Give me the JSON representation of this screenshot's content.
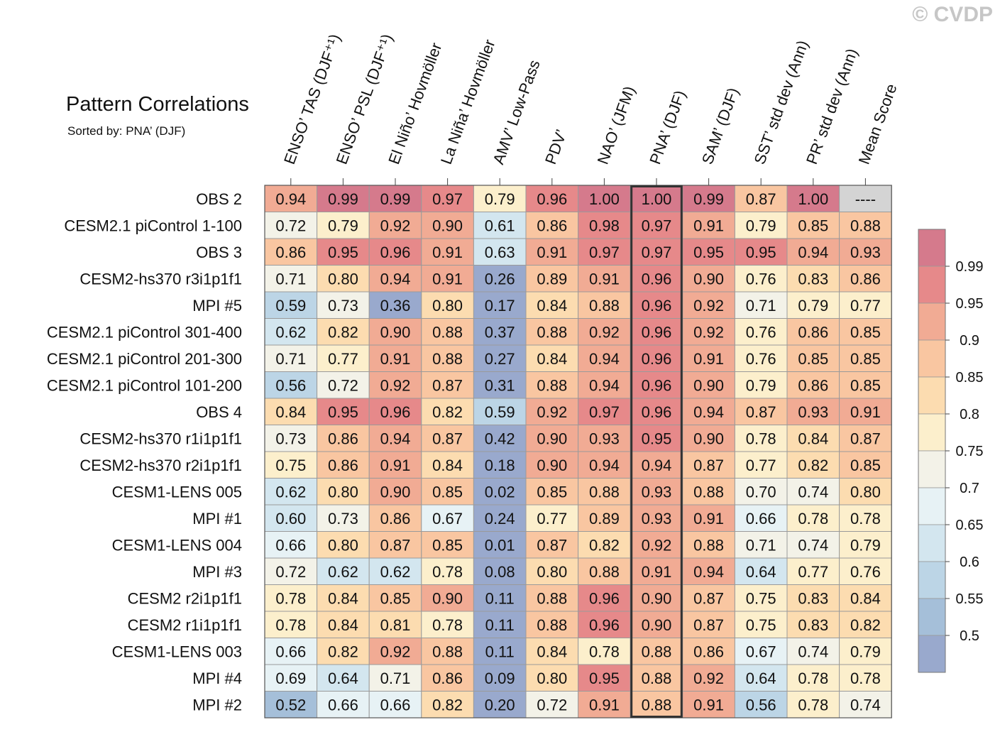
{
  "watermark": "© CVDP",
  "title": "Pattern Correlations",
  "subtitle": "Sorted by: PNA’ (DJF)",
  "chart_data": {
    "type": "heatmap",
    "title": "Pattern Correlations",
    "subtitle": "Sorted by: PNA’ (DJF)",
    "highlight_column": 7,
    "missing_label": "----",
    "columns": [
      "ENSO’ TAS (DJF⁺¹)",
      "ENSO’ PSL (DJF⁺¹)",
      "El Niño’ Hovmöller",
      "La Niña’ Hovmöller",
      "AMV’ Low-Pass",
      "PDV’",
      "NAO’ (JFM)",
      "PNA’ (DJF)",
      "SAM’ (DJF)",
      "SST’ std dev (Ann)",
      "PR’ std dev (Ann)",
      "Mean Score"
    ],
    "rows": [
      {
        "name": "OBS 2",
        "values": [
          0.94,
          0.99,
          0.99,
          0.97,
          0.79,
          0.96,
          1.0,
          1.0,
          0.99,
          0.87,
          1.0,
          null
        ]
      },
      {
        "name": "CESM2.1 piControl 1-100",
        "values": [
          0.72,
          0.79,
          0.92,
          0.9,
          0.61,
          0.86,
          0.98,
          0.97,
          0.91,
          0.79,
          0.85,
          0.88
        ]
      },
      {
        "name": "OBS 3",
        "values": [
          0.86,
          0.95,
          0.96,
          0.91,
          0.63,
          0.91,
          0.97,
          0.97,
          0.95,
          0.95,
          0.94,
          0.93
        ]
      },
      {
        "name": "CESM2-hs370 r3i1p1f1",
        "values": [
          0.71,
          0.8,
          0.94,
          0.91,
          0.26,
          0.89,
          0.91,
          0.96,
          0.9,
          0.76,
          0.83,
          0.86
        ]
      },
      {
        "name": "MPI #5",
        "values": [
          0.59,
          0.73,
          0.36,
          0.8,
          0.17,
          0.84,
          0.88,
          0.96,
          0.92,
          0.71,
          0.79,
          0.77
        ]
      },
      {
        "name": "CESM2.1 piControl 301-400",
        "values": [
          0.62,
          0.82,
          0.9,
          0.88,
          0.37,
          0.88,
          0.92,
          0.96,
          0.92,
          0.76,
          0.86,
          0.85
        ]
      },
      {
        "name": "CESM2.1 piControl 201-300",
        "values": [
          0.71,
          0.77,
          0.91,
          0.88,
          0.27,
          0.84,
          0.94,
          0.96,
          0.91,
          0.76,
          0.85,
          0.85
        ]
      },
      {
        "name": "CESM2.1 piControl 101-200",
        "values": [
          0.56,
          0.72,
          0.92,
          0.87,
          0.31,
          0.88,
          0.94,
          0.96,
          0.9,
          0.79,
          0.86,
          0.85
        ]
      },
      {
        "name": "OBS 4",
        "values": [
          0.84,
          0.95,
          0.96,
          0.82,
          0.59,
          0.92,
          0.97,
          0.96,
          0.94,
          0.87,
          0.93,
          0.91
        ]
      },
      {
        "name": "CESM2-hs370 r1i1p1f1",
        "values": [
          0.73,
          0.86,
          0.94,
          0.87,
          0.42,
          0.9,
          0.93,
          0.95,
          0.9,
          0.78,
          0.84,
          0.87
        ]
      },
      {
        "name": "CESM2-hs370 r2i1p1f1",
        "values": [
          0.75,
          0.86,
          0.91,
          0.84,
          0.18,
          0.9,
          0.94,
          0.94,
          0.87,
          0.77,
          0.82,
          0.85
        ]
      },
      {
        "name": "CESM1-LENS 005",
        "values": [
          0.62,
          0.8,
          0.9,
          0.85,
          0.02,
          0.85,
          0.88,
          0.93,
          0.88,
          0.7,
          0.74,
          0.8
        ]
      },
      {
        "name": "MPI #1",
        "values": [
          0.6,
          0.73,
          0.86,
          0.67,
          0.24,
          0.77,
          0.89,
          0.93,
          0.91,
          0.66,
          0.78,
          0.78
        ]
      },
      {
        "name": "CESM1-LENS 004",
        "values": [
          0.66,
          0.8,
          0.87,
          0.85,
          0.01,
          0.87,
          0.82,
          0.92,
          0.88,
          0.71,
          0.74,
          0.79
        ]
      },
      {
        "name": "MPI #3",
        "values": [
          0.72,
          0.62,
          0.62,
          0.78,
          0.08,
          0.8,
          0.88,
          0.91,
          0.94,
          0.64,
          0.77,
          0.76
        ]
      },
      {
        "name": "CESM2 r2i1p1f1",
        "values": [
          0.78,
          0.84,
          0.85,
          0.9,
          0.11,
          0.88,
          0.96,
          0.9,
          0.87,
          0.75,
          0.83,
          0.84
        ]
      },
      {
        "name": "CESM2 r1i1p1f1",
        "values": [
          0.78,
          0.84,
          0.81,
          0.78,
          0.11,
          0.88,
          0.96,
          0.9,
          0.87,
          0.75,
          0.83,
          0.82
        ]
      },
      {
        "name": "CESM1-LENS 003",
        "values": [
          0.66,
          0.82,
          0.92,
          0.88,
          0.11,
          0.84,
          0.78,
          0.88,
          0.86,
          0.67,
          0.74,
          0.79
        ]
      },
      {
        "name": "MPI #4",
        "values": [
          0.69,
          0.64,
          0.71,
          0.86,
          0.09,
          0.8,
          0.95,
          0.88,
          0.92,
          0.64,
          0.78,
          0.78
        ]
      },
      {
        "name": "MPI #2",
        "values": [
          0.52,
          0.66,
          0.66,
          0.82,
          0.2,
          0.72,
          0.91,
          0.88,
          0.91,
          0.56,
          0.78,
          0.74
        ]
      }
    ],
    "colorbar": {
      "thresholds": [
        0.5,
        0.55,
        0.6,
        0.65,
        0.7,
        0.75,
        0.8,
        0.85,
        0.9,
        0.95,
        0.99
      ],
      "tick_labels": [
        "0.99",
        "0.95",
        "0.9",
        "0.85",
        "0.8",
        "0.75",
        "0.7",
        "0.65",
        "0.6",
        "0.55",
        "0.5"
      ],
      "colors": [
        "#99a9cd",
        "#a5bfd9",
        "#bcd5e6",
        "#d3e6ef",
        "#e7f2f5",
        "#f3f2e8",
        "#fcefcc",
        "#fcdcb0",
        "#f9c6a1",
        "#f1ab94",
        "#e6898a",
        "#d57a8c"
      ],
      "missing_color": "#d4d4d4"
    }
  }
}
